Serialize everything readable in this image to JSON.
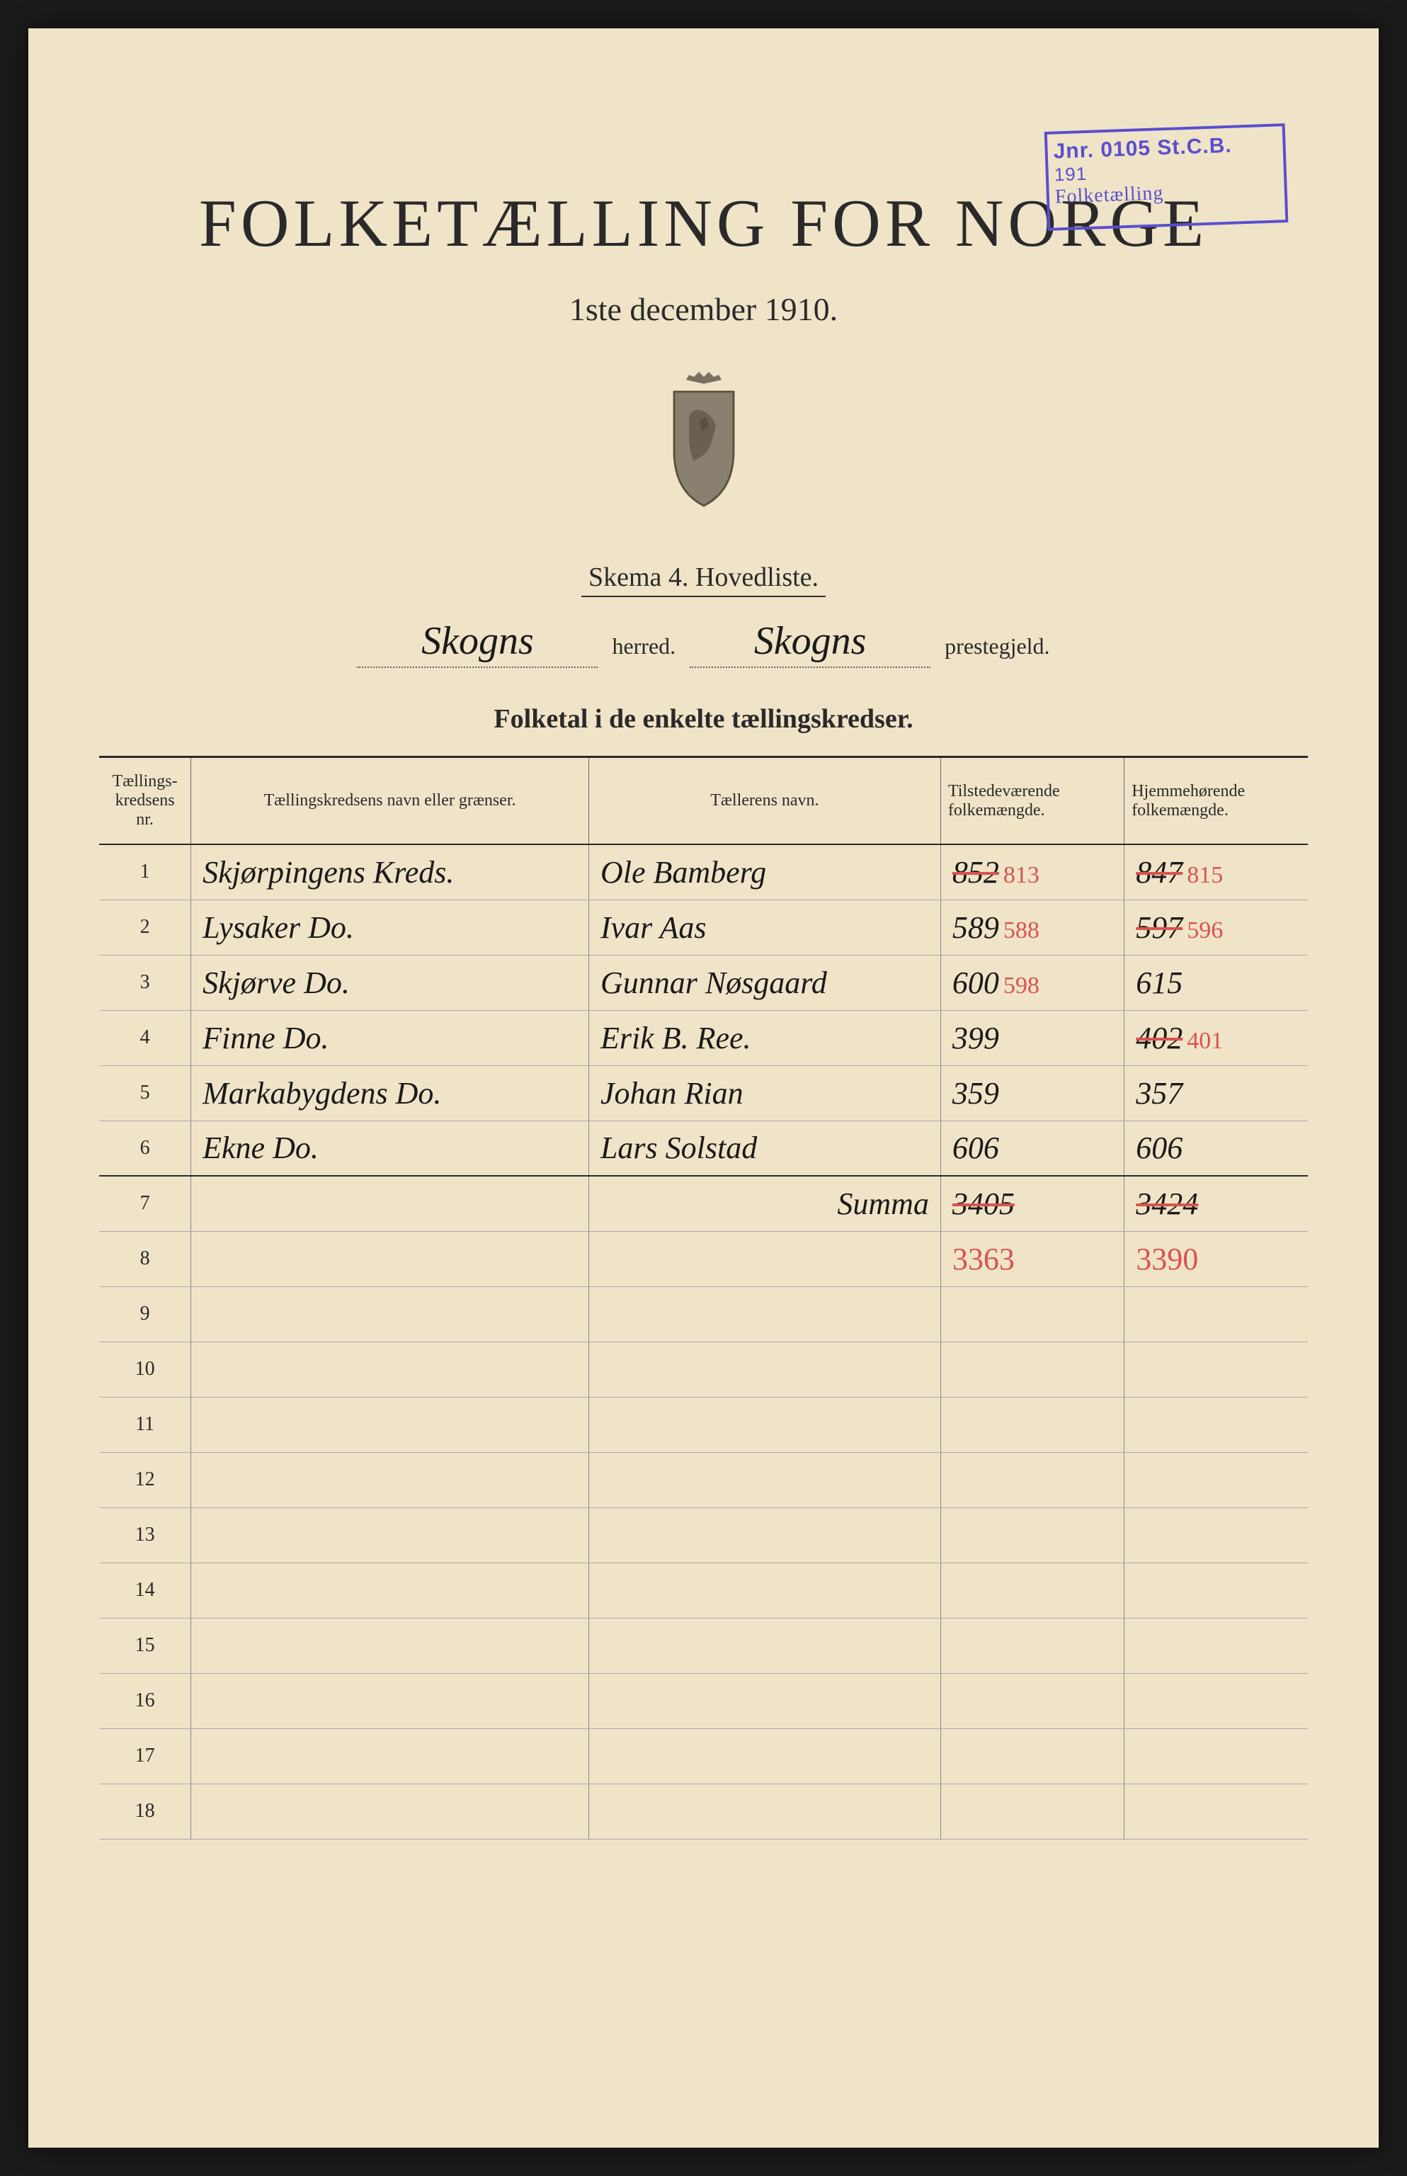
{
  "colors": {
    "page_bg": "#f0e4c8",
    "text": "#2a2a2a",
    "stamp": "#5a4fcf",
    "handwriting": "#1a1a1a",
    "correction": "#d9534f",
    "border": "#666"
  },
  "stamp": {
    "line1": "Jnr. 0105 St.C.B.",
    "line2": "191",
    "line3": "Folketælling"
  },
  "header": {
    "title": "FOLKETÆLLING FOR NORGE",
    "subtitle": "1ste december 1910.",
    "schema": "Skema 4.   Hovedliste.",
    "herred_value": "Skogns",
    "herred_label": "herred.",
    "prestegjeld_value": "Skogns",
    "prestegjeld_label": "prestegjeld.",
    "table_caption": "Folketal i de enkelte tællingskredser."
  },
  "table": {
    "columns": [
      "Tællings-kredsens nr.",
      "Tællingskredsens navn eller grænser.",
      "Tællerens navn.",
      "Tilstedeværende folkemængde.",
      "Hjemmehørende folkemængde."
    ],
    "rows": [
      {
        "nr": "1",
        "name": "Skjørpingens Kreds.",
        "teller": "Ole Bamberg",
        "tilst": "852",
        "tilst_corr": "813",
        "hjem": "847",
        "hjem_corr": "815",
        "strike_tilst": true,
        "strike_hjem": true
      },
      {
        "nr": "2",
        "name": "Lysaker     Do.",
        "teller": "Ivar Aas",
        "tilst": "589",
        "tilst_corr": "588",
        "hjem": "597",
        "hjem_corr": "596",
        "strike_tilst": false,
        "strike_hjem": true
      },
      {
        "nr": "3",
        "name": "Skjørve     Do.",
        "teller": "Gunnar Nøsgaard",
        "tilst": "600",
        "tilst_corr": "598",
        "hjem": "615",
        "hjem_corr": "",
        "strike_tilst": false,
        "strike_hjem": false
      },
      {
        "nr": "4",
        "name": "Finne       Do.",
        "teller": "Erik B. Ree.",
        "tilst": "399",
        "tilst_corr": "",
        "hjem": "402",
        "hjem_corr": "401",
        "strike_tilst": false,
        "strike_hjem": true
      },
      {
        "nr": "5",
        "name": "Markabygdens Do.",
        "teller": "Johan Rian",
        "tilst": "359",
        "tilst_corr": "",
        "hjem": "357",
        "hjem_corr": "",
        "strike_tilst": false,
        "strike_hjem": false
      },
      {
        "nr": "6",
        "name": "Ekne        Do.",
        "teller": "Lars Solstad",
        "tilst": "606",
        "tilst_corr": "",
        "hjem": "606",
        "hjem_corr": "",
        "strike_tilst": false,
        "strike_hjem": false
      }
    ],
    "summa_label": "Summa",
    "summa_tilst": "3405",
    "summa_hjem": "3424",
    "corrected_tilst": "3363",
    "corrected_hjem": "3390",
    "empty_rows_start": 9,
    "empty_rows_end": 18
  }
}
